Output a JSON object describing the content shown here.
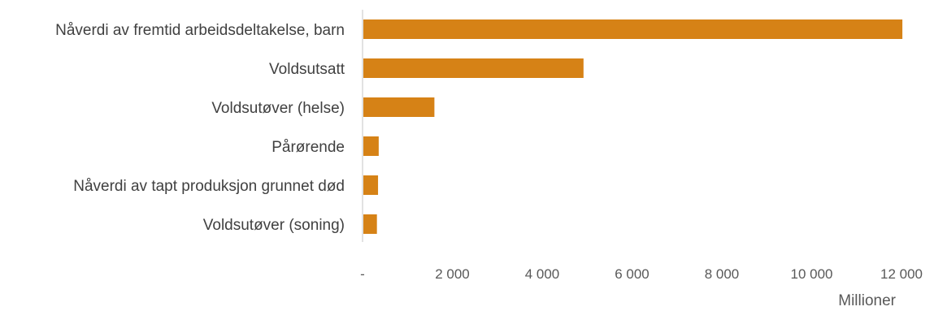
{
  "chart_data": {
    "type": "bar",
    "orientation": "horizontal",
    "categories": [
      "Nåverdi av fremtid arbeidsdeltakelse, barn",
      "Voldsutsatt",
      "Voldsutøver (helse)",
      "Pårørende",
      "Nåverdi av tapt produksjon grunnet død",
      "Voldsutøver (soning)"
    ],
    "values": [
      12020,
      4920,
      1600,
      360,
      345,
      320
    ],
    "xlim": [
      0,
      12000
    ],
    "tick_values": [
      0,
      2000,
      4000,
      6000,
      8000,
      10000,
      12000
    ],
    "tick_labels": [
      "-",
      "2 000",
      "4 000",
      "6 000",
      "8 000",
      "10 000",
      "12 000"
    ],
    "unit_label": "Millioner",
    "title": "",
    "xlabel": "",
    "ylabel": "",
    "grid": false,
    "legend": "none",
    "colors": {
      "bar": "#D68216",
      "axis": "#D9D9D9",
      "category_text": "#404040",
      "tick_text": "#595959"
    }
  }
}
